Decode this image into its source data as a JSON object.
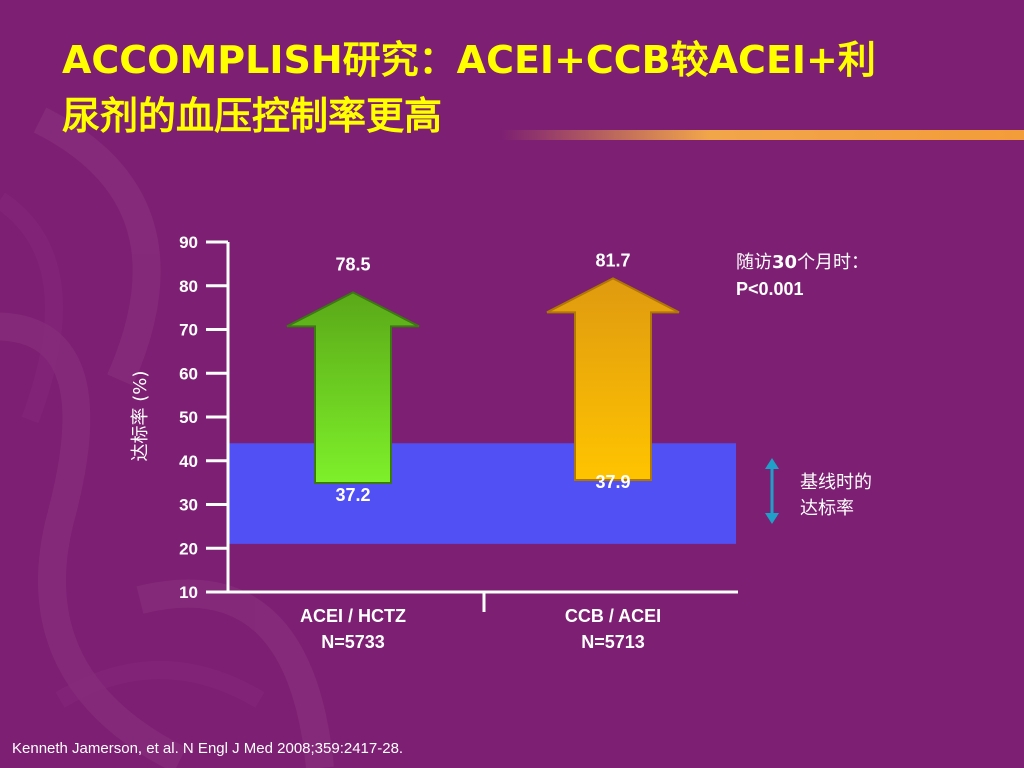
{
  "slide": {
    "title_line1": "ACCOMPLISH研究：ACEI+CCB较ACEI+利",
    "title_line2": "尿剂的血压控制率更高",
    "annotation_pvalue_line1_prefix": "随访",
    "annotation_pvalue_line1_bold": "30",
    "annotation_pvalue_line1_suffix": "个月时：",
    "annotation_pvalue_line2": "P<0.001",
    "annotation_baseline_line1": "基线时的",
    "annotation_baseline_line2": "达标率",
    "citation": "Kenneth Jamerson, et al. N Engl J Med 2008;359:2417-28."
  },
  "colors": {
    "background": "#7d1f72",
    "title": "#ffff00",
    "baseline_band": "#5050f5",
    "arrow_green": "#6fe020",
    "arrow_orange": "#f6b400",
    "double_arrow": "#1ea0c8"
  },
  "chart_data": {
    "type": "bar",
    "ylabel": "达标率 (%)",
    "xlabel": "",
    "ylim": [
      10,
      90
    ],
    "yticks": [
      10,
      20,
      30,
      40,
      50,
      60,
      70,
      80,
      90
    ],
    "categories": [
      {
        "line1": "ACEI / HCTZ",
        "line2": "N=5733"
      },
      {
        "line1": "CCB / ACEI",
        "line2": "N=5713"
      }
    ],
    "series": [
      {
        "values": [
          37.2,
          37.9
        ],
        "labels": [
          "37.2",
          "37.9"
        ]
      },
      {
        "values": [
          78.5,
          81.7
        ],
        "labels": [
          "78.5",
          "81.7"
        ]
      }
    ],
    "baseline_band_range": [
      21,
      44
    ]
  }
}
